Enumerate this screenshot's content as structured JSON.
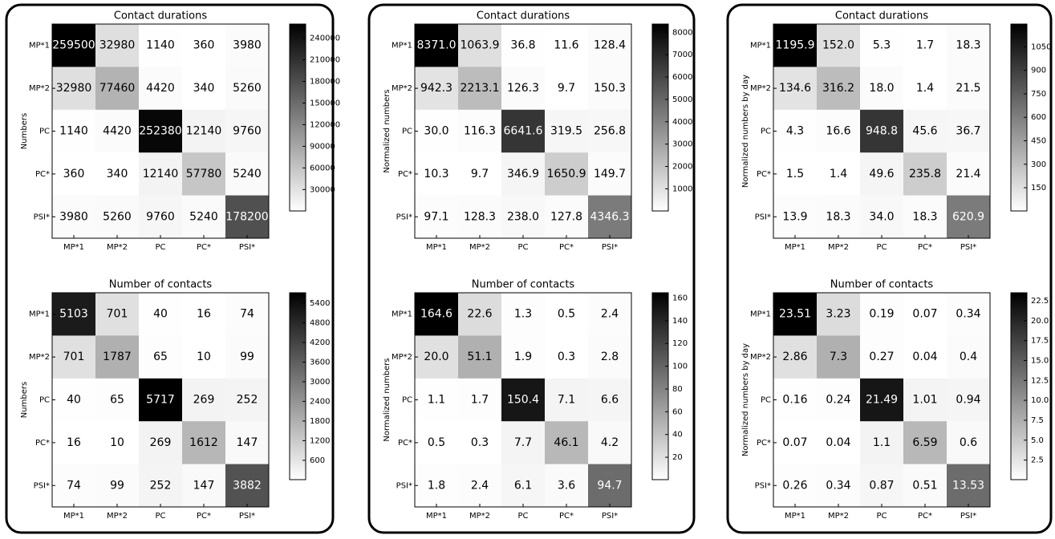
{
  "chart_data": [
    {
      "type": "heatmap",
      "title": "Contact durations",
      "ylabel": "Numbers",
      "x": [
        "MP*1",
        "MP*2",
        "PC",
        "PC*",
        "PSI*"
      ],
      "y": [
        "MP*1",
        "MP*2",
        "PC",
        "PC*",
        "PSI*"
      ],
      "values": [
        [
          259500,
          32980,
          1140,
          360,
          3980
        ],
        [
          32980,
          77460,
          4420,
          340,
          5260
        ],
        [
          1140,
          4420,
          252380,
          12140,
          9760
        ],
        [
          360,
          340,
          12140,
          57780,
          5240
        ],
        [
          3980,
          5260,
          9760,
          5240,
          178200
        ]
      ],
      "colormap": "gray_r",
      "zlim": [
        340,
        259500
      ],
      "zticks": [
        30000,
        60000,
        90000,
        120000,
        150000,
        180000,
        210000,
        240000
      ]
    },
    {
      "type": "heatmap",
      "title": "Number of contacts",
      "ylabel": "Numbers",
      "x": [
        "MP*1",
        "MP*2",
        "PC",
        "PC*",
        "PSI*"
      ],
      "y": [
        "MP*1",
        "MP*2",
        "PC",
        "PC*",
        "PSI*"
      ],
      "values": [
        [
          5103,
          701,
          40,
          16,
          74
        ],
        [
          701,
          1787,
          65,
          10,
          99
        ],
        [
          40,
          65,
          5717,
          269,
          252
        ],
        [
          16,
          10,
          269,
          1612,
          147
        ],
        [
          74,
          99,
          252,
          147,
          3882
        ]
      ],
      "colormap": "gray_r",
      "zlim": [
        10,
        5717
      ],
      "zticks": [
        600,
        1200,
        1800,
        2400,
        3000,
        3600,
        4200,
        4800,
        5400
      ]
    },
    {
      "type": "heatmap",
      "title": "Contact durations",
      "ylabel": "Normalized numbers",
      "x": [
        "MP*1",
        "MP*2",
        "PC",
        "PC*",
        "PSI*"
      ],
      "y": [
        "MP*1",
        "MP*2",
        "PC",
        "PC*",
        "PSI*"
      ],
      "values": [
        [
          8371.0,
          1063.9,
          36.8,
          11.6,
          128.4
        ],
        [
          942.3,
          2213.1,
          126.3,
          9.7,
          150.3
        ],
        [
          30.0,
          116.3,
          6641.6,
          319.5,
          256.8
        ],
        [
          10.3,
          9.7,
          346.9,
          1650.9,
          149.7
        ],
        [
          97.1,
          128.3,
          238.0,
          127.8,
          4346.3
        ]
      ],
      "value_labels": [
        [
          "8371.0",
          "1063.9",
          "36.8",
          "11.6",
          "128.4"
        ],
        [
          "942.3",
          "2213.1",
          "126.3",
          "9.7",
          "150.3"
        ],
        [
          "30.0",
          "116.3",
          "6641.6",
          "319.5",
          "256.8"
        ],
        [
          "10.3",
          "9.7",
          "346.9",
          "1650.9",
          "149.7"
        ],
        [
          "97.1",
          "128.3",
          "238.0",
          "127.8",
          "4346.3"
        ]
      ],
      "colormap": "gray_r",
      "zlim": [
        9.7,
        8371
      ],
      "zticks": [
        1000,
        2000,
        3000,
        4000,
        5000,
        6000,
        7000,
        8000
      ]
    },
    {
      "type": "heatmap",
      "title": "Number of contacts",
      "ylabel": "Normalized numbers",
      "x": [
        "MP*1",
        "MP*2",
        "PC",
        "PC*",
        "PSI*"
      ],
      "y": [
        "MP*1",
        "MP*2",
        "PC",
        "PC*",
        "PSI*"
      ],
      "values": [
        [
          164.6,
          22.6,
          1.3,
          0.5,
          2.4
        ],
        [
          20.0,
          51.1,
          1.9,
          0.3,
          2.8
        ],
        [
          1.1,
          1.7,
          150.4,
          7.1,
          6.6
        ],
        [
          0.5,
          0.3,
          7.7,
          46.1,
          4.2
        ],
        [
          1.8,
          2.4,
          6.1,
          3.6,
          94.7
        ]
      ],
      "value_labels": [
        [
          "164.6",
          "22.6",
          "1.3",
          "0.5",
          "2.4"
        ],
        [
          "20.0",
          "51.1",
          "1.9",
          "0.3",
          "2.8"
        ],
        [
          "1.1",
          "1.7",
          "150.4",
          "7.1",
          "6.6"
        ],
        [
          "0.5",
          "0.3",
          "7.7",
          "46.1",
          "4.2"
        ],
        [
          "1.8",
          "2.4",
          "6.1",
          "3.6",
          "94.7"
        ]
      ],
      "colormap": "gray_r",
      "zlim": [
        0.3,
        164.6
      ],
      "zticks": [
        20,
        40,
        60,
        80,
        100,
        120,
        140,
        160
      ]
    },
    {
      "type": "heatmap",
      "title": "Contact durations",
      "ylabel": "Normalized numbers by day",
      "x": [
        "MP*1",
        "MP*2",
        "PC",
        "PC*",
        "PSI*"
      ],
      "y": [
        "MP*1",
        "MP*2",
        "PC",
        "PC*",
        "PSI*"
      ],
      "values": [
        [
          1195.9,
          152.0,
          5.3,
          1.7,
          18.3
        ],
        [
          134.6,
          316.2,
          18.0,
          1.4,
          21.5
        ],
        [
          4.3,
          16.6,
          948.8,
          45.6,
          36.7
        ],
        [
          1.5,
          1.4,
          49.6,
          235.8,
          21.4
        ],
        [
          13.9,
          18.3,
          34.0,
          18.3,
          620.9
        ]
      ],
      "value_labels": [
        [
          "1195.9",
          "152.0",
          "5.3",
          "1.7",
          "18.3"
        ],
        [
          "134.6",
          "316.2",
          "18.0",
          "1.4",
          "21.5"
        ],
        [
          "4.3",
          "16.6",
          "948.8",
          "45.6",
          "36.7"
        ],
        [
          "1.5",
          "1.4",
          "49.6",
          "235.8",
          "21.4"
        ],
        [
          "13.9",
          "18.3",
          "34.0",
          "18.3",
          "620.9"
        ]
      ],
      "colormap": "gray_r",
      "zlim": [
        1.4,
        1195.9
      ],
      "zticks": [
        150,
        300,
        450,
        600,
        750,
        900,
        1050
      ]
    },
    {
      "type": "heatmap",
      "title": "Number of contacts",
      "ylabel": "Normalized numbers by day",
      "x": [
        "MP*1",
        "MP*2",
        "PC",
        "PC*",
        "PSI*"
      ],
      "y": [
        "MP*1",
        "MP*2",
        "PC",
        "PC*",
        "PSI*"
      ],
      "values": [
        [
          23.51,
          3.23,
          0.19,
          0.07,
          0.34
        ],
        [
          2.86,
          7.3,
          0.27,
          0.04,
          0.4
        ],
        [
          0.16,
          0.24,
          21.49,
          1.01,
          0.94
        ],
        [
          0.07,
          0.04,
          1.1,
          6.59,
          0.6
        ],
        [
          0.26,
          0.34,
          0.87,
          0.51,
          13.53
        ]
      ],
      "colormap": "gray_r",
      "zlim": [
        0.04,
        23.51
      ],
      "zticks": [
        2.5,
        {
          "value": 5,
          "label": "5.0"
        },
        7.5,
        {
          "value": 10,
          "label": "10.0"
        },
        12.5,
        {
          "value": 15,
          "label": "15.0"
        },
        17.5,
        {
          "value": 20,
          "label": "20.0"
        },
        22.5
      ]
    }
  ]
}
